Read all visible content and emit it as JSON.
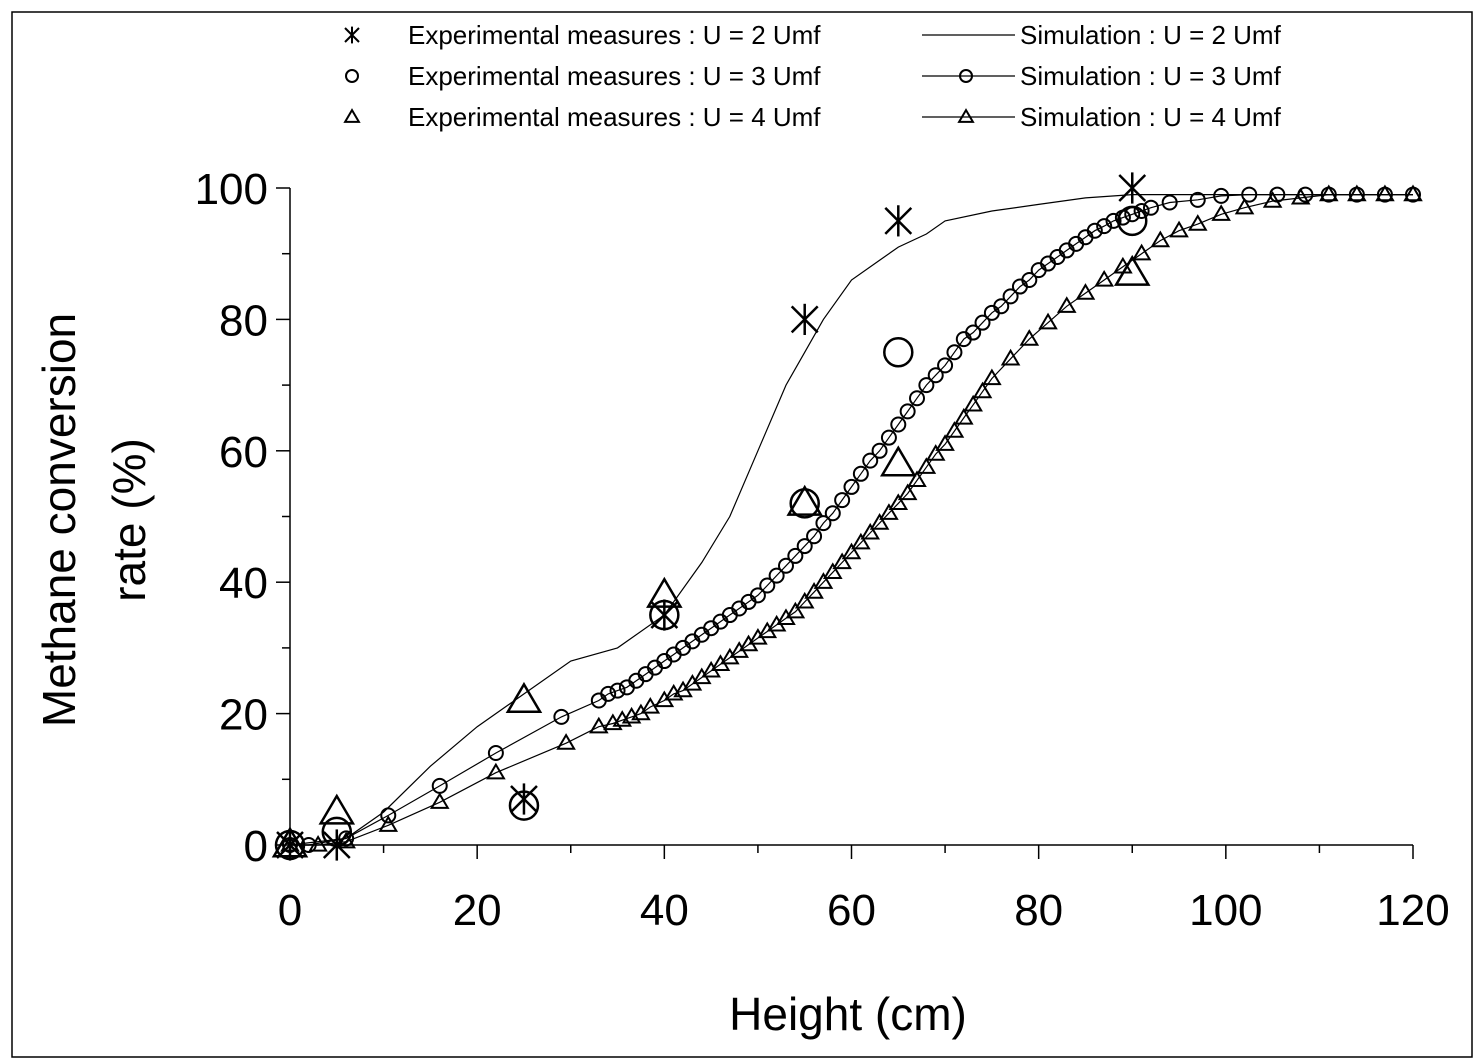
{
  "chart_data": {
    "type": "scatter",
    "xlabel": "Height (cm)",
    "ylabel_lines": [
      "Methane conversion",
      "rate (%)"
    ],
    "xlim": [
      0,
      120
    ],
    "ylim": [
      0,
      100
    ],
    "x_ticks": [
      0,
      20,
      40,
      60,
      80,
      100,
      120
    ],
    "y_ticks": [
      0,
      20,
      40,
      60,
      80,
      100
    ],
    "grid": false,
    "legend_position": "top",
    "legend": [
      {
        "label": "Experimental measures : U = 2 Umf",
        "marker": "asterisk",
        "line": false
      },
      {
        "label": "Simulation : U = 2 Umf",
        "marker": "none",
        "line": true
      },
      {
        "label": "Experimental measures : U = 3 Umf",
        "marker": "circle",
        "line": false
      },
      {
        "label": "Simulation : U = 3 Umf",
        "marker": "circle",
        "line": true
      },
      {
        "label": "Experimental measures : U = 4 Umf",
        "marker": "triangle",
        "line": false
      },
      {
        "label": "Simulation : U = 4 Umf",
        "marker": "triangle",
        "line": true
      }
    ],
    "experimental": [
      {
        "name": "Experimental measures : U = 2 Umf",
        "marker": "asterisk",
        "x": [
          0,
          5,
          25,
          40,
          55,
          65,
          90
        ],
        "y": [
          0,
          0,
          7,
          35,
          80,
          95,
          100
        ]
      },
      {
        "name": "Experimental measures : U = 3 Umf",
        "marker": "circle",
        "x": [
          0,
          5,
          25,
          40,
          55,
          65,
          90
        ],
        "y": [
          0,
          2,
          6,
          35,
          52,
          75,
          95
        ]
      },
      {
        "name": "Experimental measures : U = 4 Umf",
        "marker": "triangle",
        "x": [
          0,
          5,
          25,
          40,
          55,
          65,
          90
        ],
        "y": [
          0,
          5,
          22,
          38,
          52,
          58,
          87
        ]
      }
    ],
    "simulation": [
      {
        "name": "Simulation : U = 2 Umf",
        "marker": "none",
        "x": [
          0,
          6,
          10,
          15,
          20,
          25,
          30,
          35,
          40,
          44,
          47,
          50,
          53,
          55,
          57,
          60,
          63,
          65,
          68,
          70,
          75,
          80,
          85,
          90,
          95,
          100,
          110,
          120
        ],
        "y": [
          0,
          1,
          5,
          12,
          18,
          23,
          28,
          30,
          35,
          43,
          50,
          60,
          70,
          75,
          80,
          86,
          89,
          91,
          93,
          95,
          96.5,
          97.5,
          98.5,
          99,
          99,
          99,
          99,
          99
        ]
      },
      {
        "name": "Simulation : U = 3 Umf",
        "marker": "circle",
        "x": [
          0,
          2,
          6,
          10.5,
          16,
          22,
          29,
          33,
          34,
          35,
          36,
          37,
          38,
          39,
          40,
          41,
          42,
          43,
          44,
          45,
          46,
          47,
          48,
          49,
          50,
          51,
          52,
          53,
          54,
          55,
          56,
          57,
          58,
          59,
          60,
          61,
          62,
          63,
          64,
          65,
          66,
          67,
          68,
          69,
          70,
          71,
          72,
          73,
          74,
          75,
          76,
          77,
          78,
          79,
          80,
          81,
          82,
          83,
          84,
          85,
          86,
          87,
          88,
          89,
          90,
          91,
          92,
          94,
          97,
          99.5,
          102.5,
          105.5,
          108.5,
          111,
          114,
          117,
          120
        ],
        "y": [
          0,
          0,
          1,
          4.5,
          9,
          14,
          19.5,
          22,
          23,
          23.5,
          24,
          25,
          26,
          27,
          28,
          29,
          30,
          31,
          32,
          33,
          34,
          35,
          36,
          37,
          38,
          39.5,
          41,
          42.5,
          44,
          45.5,
          47,
          49,
          50.5,
          52.5,
          54.5,
          56.5,
          58.5,
          60,
          62,
          64,
          66,
          68,
          70,
          71.5,
          73,
          75,
          77,
          78,
          79.5,
          81,
          82,
          83.5,
          85,
          86,
          87.5,
          88.5,
          89.5,
          90.5,
          91.5,
          92.5,
          93.5,
          94.2,
          95,
          95.5,
          96,
          96.5,
          97,
          97.8,
          98.2,
          98.8,
          99,
          99,
          99,
          99,
          99,
          99,
          99
        ]
      },
      {
        "name": "Simulation : U = 4 Umf",
        "marker": "triangle",
        "x": [
          0,
          3,
          6,
          10.5,
          16,
          22,
          29.5,
          33,
          34.5,
          35.5,
          36.5,
          37.5,
          38.5,
          40,
          41,
          42,
          43,
          44,
          45,
          46,
          47,
          48,
          49,
          50,
          51,
          52,
          53,
          54,
          55,
          56,
          57,
          58,
          59,
          60,
          61,
          62,
          63,
          64,
          65,
          66,
          67,
          68,
          69,
          70,
          71,
          72,
          73,
          74,
          75,
          77,
          79,
          81,
          83,
          85,
          87,
          89,
          91,
          93,
          95,
          97,
          99.5,
          102,
          105,
          108,
          111,
          114,
          117,
          120
        ],
        "y": [
          0,
          0,
          0.5,
          3,
          6.5,
          11,
          15.5,
          18,
          18.5,
          19,
          19.5,
          20,
          21,
          22,
          23,
          23.5,
          24.5,
          25.5,
          26.5,
          27.5,
          28.5,
          29.5,
          30.5,
          31.5,
          32.5,
          33.5,
          34.5,
          35.5,
          37,
          38.5,
          40,
          41.5,
          43,
          44.5,
          46,
          47.5,
          49,
          50.5,
          52,
          53.5,
          55.5,
          57.5,
          59.5,
          61,
          63,
          65,
          67,
          69,
          71,
          74,
          77,
          79.5,
          82,
          84,
          86,
          88,
          90,
          92,
          93.5,
          94.5,
          96,
          97,
          98,
          98.5,
          99,
          99,
          99,
          99
        ]
      }
    ]
  }
}
